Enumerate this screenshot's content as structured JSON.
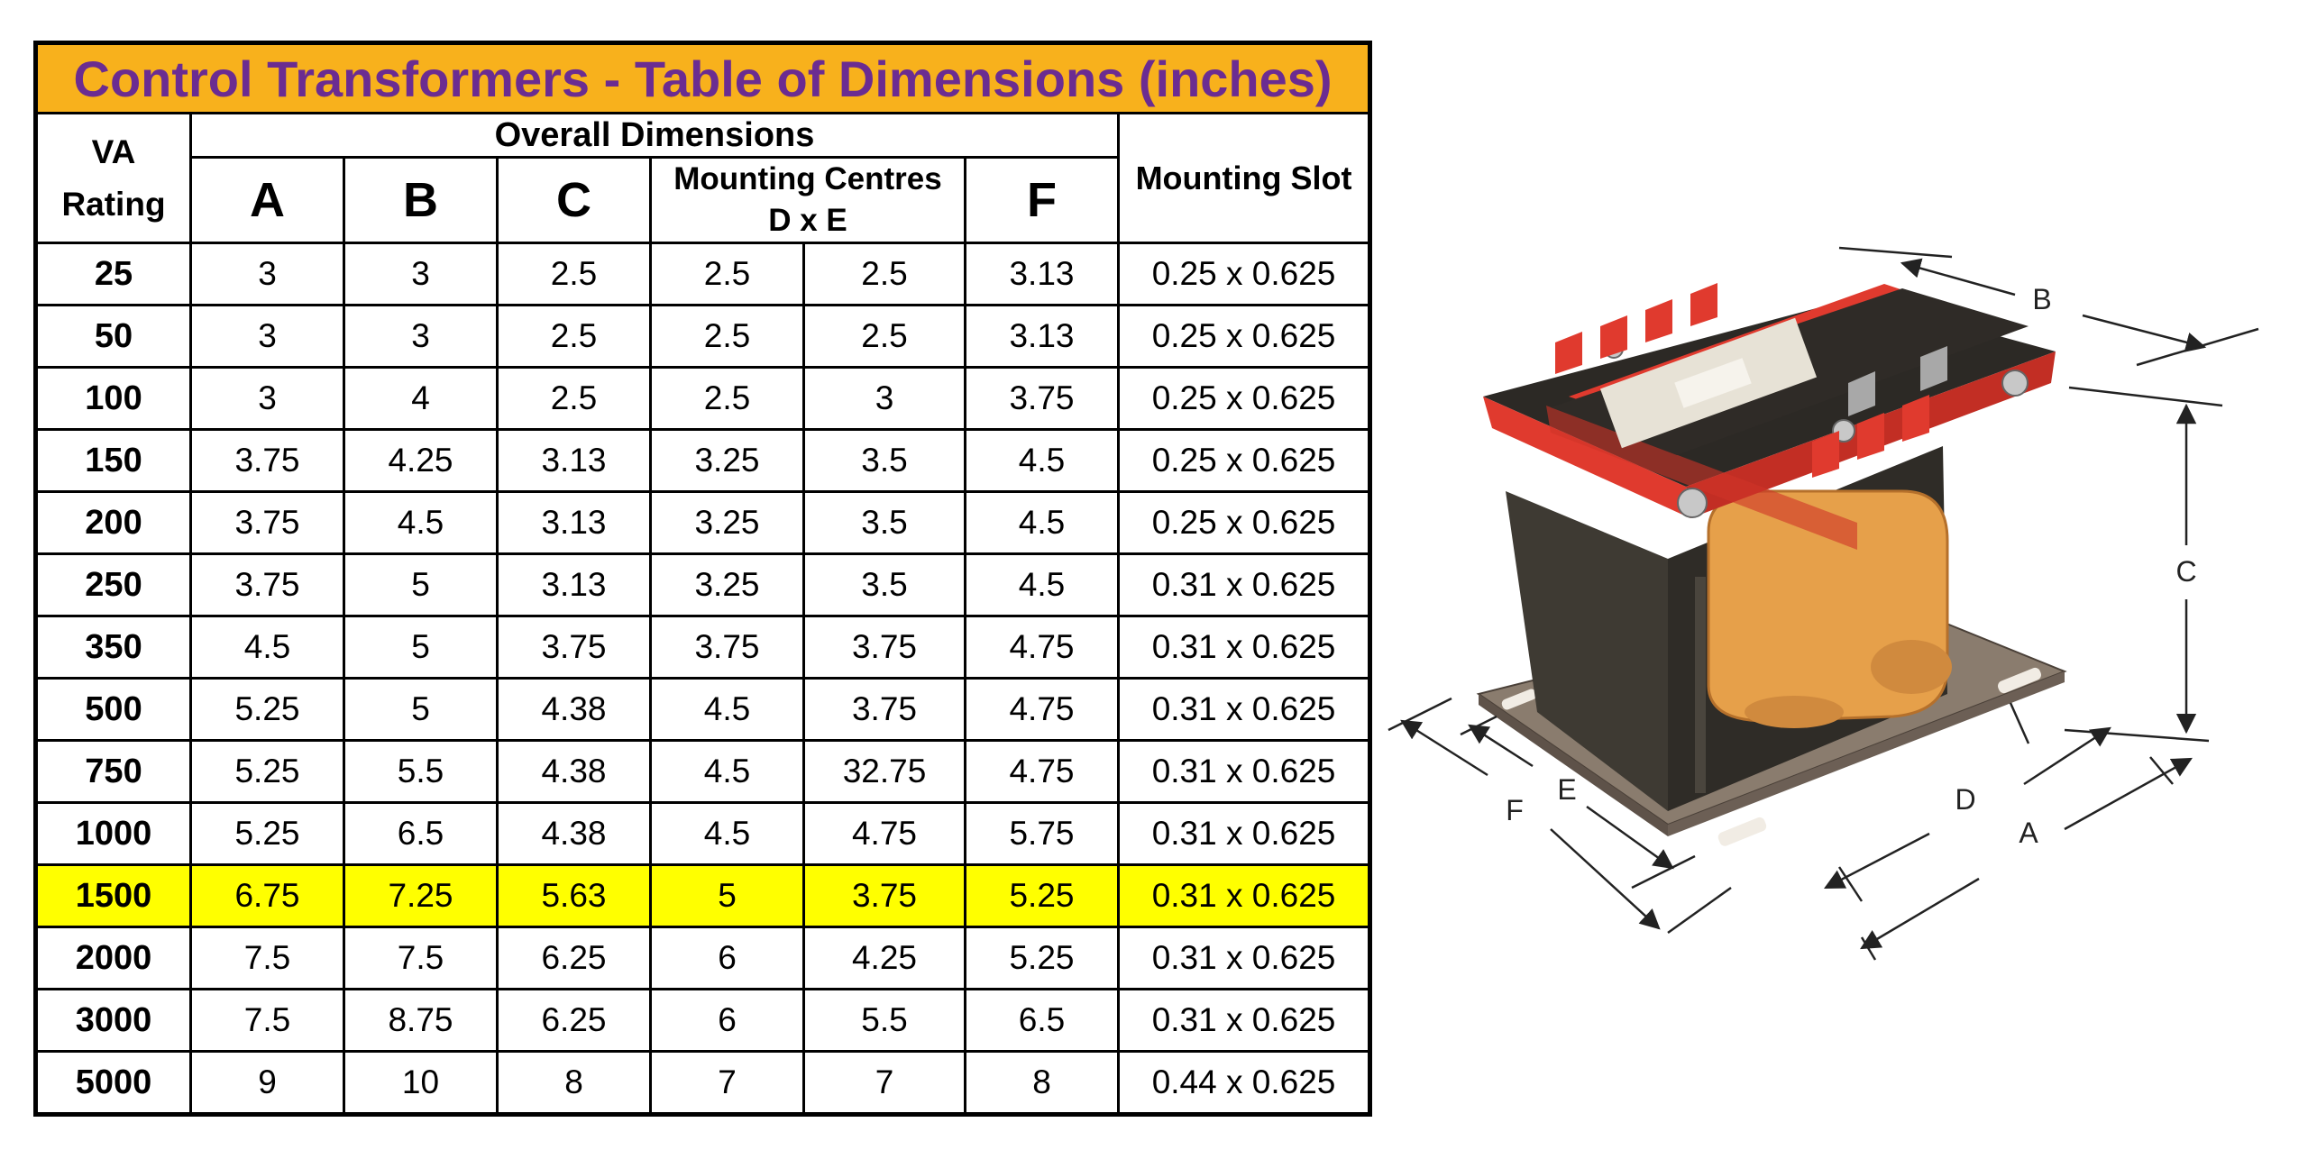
{
  "table": {
    "title": "Control Transformers - Table of Dimensions (inches)",
    "header": {
      "va_rating": "VA Rating",
      "overall": "Overall Dimensions",
      "a": "A",
      "b": "B",
      "c": "C",
      "mounting_centres": "Mounting Centres D x E",
      "f": "F",
      "mounting_slot": "Mounting Slot"
    },
    "highlight_color": "#ffff00",
    "title_bg": "#f8b11c",
    "title_color": "#6b2c91",
    "rows": [
      {
        "va": "25",
        "a": "3",
        "b": "3",
        "c": "2.5",
        "d": "2.5",
        "e": "2.5",
        "f": "3.13",
        "slot": "0.25 x 0.625",
        "highlight": false
      },
      {
        "va": "50",
        "a": "3",
        "b": "3",
        "c": "2.5",
        "d": "2.5",
        "e": "2.5",
        "f": "3.13",
        "slot": "0.25 x 0.625",
        "highlight": false
      },
      {
        "va": "100",
        "a": "3",
        "b": "4",
        "c": "2.5",
        "d": "2.5",
        "e": "3",
        "f": "3.75",
        "slot": "0.25 x 0.625",
        "highlight": false
      },
      {
        "va": "150",
        "a": "3.75",
        "b": "4.25",
        "c": "3.13",
        "d": "3.25",
        "e": "3.5",
        "f": "4.5",
        "slot": "0.25 x 0.625",
        "highlight": false
      },
      {
        "va": "200",
        "a": "3.75",
        "b": "4.5",
        "c": "3.13",
        "d": "3.25",
        "e": "3.5",
        "f": "4.5",
        "slot": "0.25 x 0.625",
        "highlight": false
      },
      {
        "va": "250",
        "a": "3.75",
        "b": "5",
        "c": "3.13",
        "d": "3.25",
        "e": "3.5",
        "f": "4.5",
        "slot": "0.31 x 0.625",
        "highlight": false
      },
      {
        "va": "350",
        "a": "4.5",
        "b": "5",
        "c": "3.75",
        "d": "3.75",
        "e": "3.75",
        "f": "4.75",
        "slot": "0.31 x 0.625",
        "highlight": false
      },
      {
        "va": "500",
        "a": "5.25",
        "b": "5",
        "c": "4.38",
        "d": "4.5",
        "e": "3.75",
        "f": "4.75",
        "slot": "0.31 x 0.625",
        "highlight": false
      },
      {
        "va": "750",
        "a": "5.25",
        "b": "5.5",
        "c": "4.38",
        "d": "4.5",
        "e": "32.75",
        "f": "4.75",
        "slot": "0.31 x 0.625",
        "highlight": false
      },
      {
        "va": "1000",
        "a": "5.25",
        "b": "6.5",
        "c": "4.38",
        "d": "4.5",
        "e": "4.75",
        "f": "5.75",
        "slot": "0.31 x 0.625",
        "highlight": false
      },
      {
        "va": "1500",
        "a": "6.75",
        "b": "7.25",
        "c": "5.63",
        "d": "5",
        "e": "3.75",
        "f": "5.25",
        "slot": "0.31 x 0.625",
        "highlight": true
      },
      {
        "va": "2000",
        "a": "7.5",
        "b": "7.5",
        "c": "6.25",
        "d": "6",
        "e": "4.25",
        "f": "5.25",
        "slot": "0.31 x 0.625",
        "highlight": false
      },
      {
        "va": "3000",
        "a": "7.5",
        "b": "8.75",
        "c": "6.25",
        "d": "6",
        "e": "5.5",
        "f": "6.5",
        "slot": "0.31 x 0.625",
        "highlight": false
      },
      {
        "va": "5000",
        "a": "9",
        "b": "10",
        "c": "8",
        "d": "7",
        "e": "7",
        "f": "8",
        "slot": "0.44 x 0.625",
        "highlight": false
      }
    ]
  },
  "figure": {
    "dim_labels": {
      "a": "A",
      "b": "B",
      "c": "C",
      "d": "D",
      "e": "E",
      "f": "F"
    },
    "frame_color": "#e03a2e",
    "core_color": "#3e3a33",
    "coil_color": "#e6a04a",
    "base_color": "#8a7c6e"
  }
}
